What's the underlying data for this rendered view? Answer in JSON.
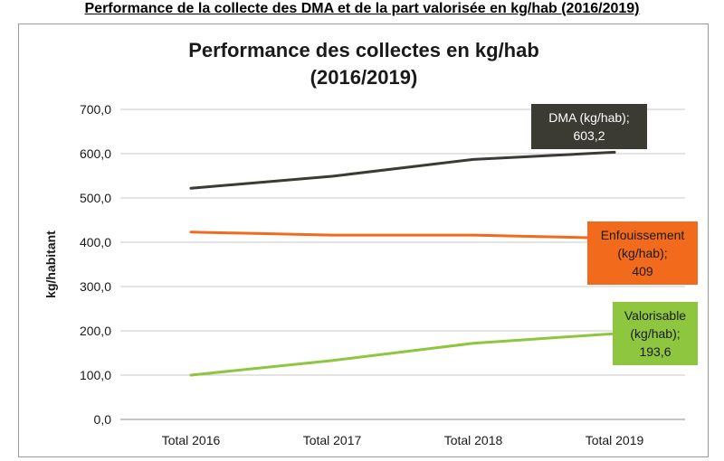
{
  "page_heading": "Performance de la collecte des DMA et de la part valorisée en kg/hab (2016/2019)",
  "chart_data": {
    "type": "line",
    "title": [
      "Performance des collectes en kg/hab",
      "(2016/2019)"
    ],
    "xlabel": "",
    "ylabel": "kg/habitant",
    "ylim": [
      0,
      700
    ],
    "yticks": [
      0,
      100,
      200,
      300,
      400,
      500,
      600,
      700
    ],
    "ytick_labels": [
      "0,0",
      "100,0",
      "200,0",
      "300,0",
      "400,0",
      "500,0",
      "600,0",
      "700,0"
    ],
    "categories": [
      "Total 2016",
      "Total 2017",
      "Total 2018",
      "Total 2019"
    ],
    "grid": true,
    "legend": "none",
    "series": [
      {
        "name": "DMA (kg/hab)",
        "color": "#3b3b34",
        "values": [
          522,
          549,
          587,
          603.2
        ],
        "end_label": [
          "DMA (kg/hab);",
          "603,2"
        ],
        "label_bg": "#3b3b34",
        "label_color": "#ffffff"
      },
      {
        "name": "Enfouissement (kg/hab)",
        "color": "#f26a1b",
        "values": [
          423,
          416,
          416,
          409
        ],
        "end_label": [
          "Enfouissement",
          "(kg/hab);",
          "409"
        ],
        "label_bg": "#f26a1b",
        "label_color": "#1a1a1a"
      },
      {
        "name": "Valorisable (kg/hab)",
        "color": "#8ec63f",
        "values": [
          100,
          133,
          172,
          193.6
        ],
        "end_label": [
          "Valorisable",
          "(kg/hab);",
          "193,6"
        ],
        "label_bg": "#8ec63f",
        "label_color": "#1a1a1a"
      }
    ]
  }
}
